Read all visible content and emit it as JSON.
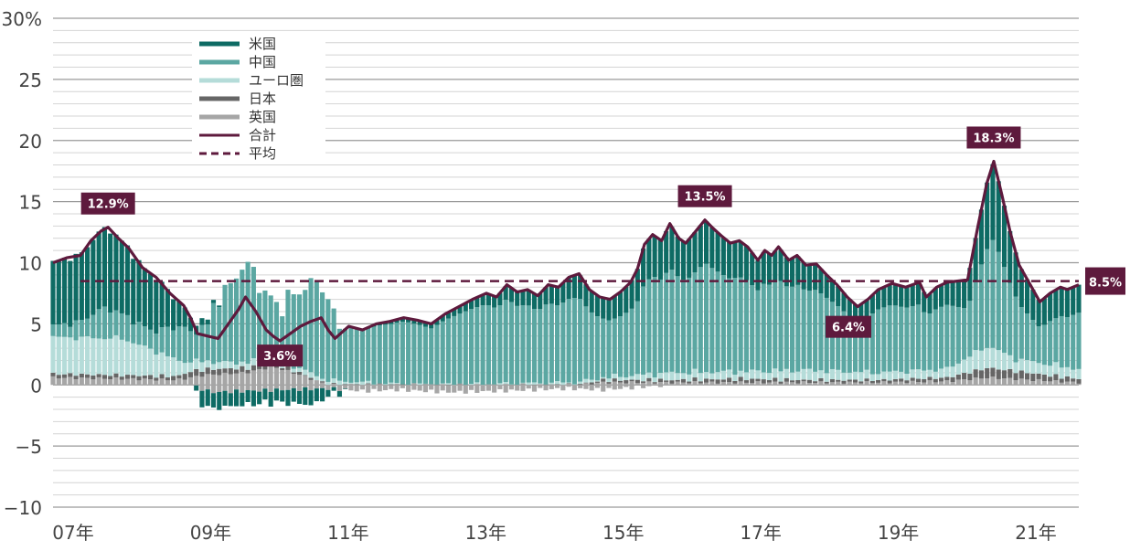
{
  "chart_data": {
    "type": "bar",
    "stacked": true,
    "ylim": [
      -10,
      30
    ],
    "yticks": [
      {
        "value": 30,
        "label": "30%"
      },
      {
        "value": 25,
        "label": "25"
      },
      {
        "value": 20,
        "label": "20"
      },
      {
        "value": 15,
        "label": "15"
      },
      {
        "value": 10,
        "label": "10"
      },
      {
        "value": 5,
        "label": "5"
      },
      {
        "value": 0,
        "label": "0"
      },
      {
        "value": -5,
        "label": "−5"
      },
      {
        "value": -10,
        "label": "−10"
      }
    ],
    "minor_grid_step": 1,
    "xrange": [
      2007.0,
      2021.917
    ],
    "xticks": [
      {
        "value": 2007.0,
        "label": "07年"
      },
      {
        "value": 2009.0,
        "label": "09年"
      },
      {
        "value": 2011.0,
        "label": "11年"
      },
      {
        "value": 2013.0,
        "label": "13年"
      },
      {
        "value": 2015.0,
        "label": "15年"
      },
      {
        "value": 2017.0,
        "label": "17年"
      },
      {
        "value": 2019.0,
        "label": "19年"
      },
      {
        "value": 2021.0,
        "label": "21年"
      }
    ],
    "legend_position": "top-left",
    "legend": [
      {
        "label": "米国",
        "kind": "bar",
        "color": "#0e6b64"
      },
      {
        "label": "中国",
        "kind": "bar",
        "color": "#5ba7a2"
      },
      {
        "label": "ユーロ圏",
        "kind": "bar",
        "color": "#b5dcd9"
      },
      {
        "label": "日本",
        "kind": "bar",
        "color": "#666666"
      },
      {
        "label": "英国",
        "kind": "bar",
        "color": "#a6a6a6"
      },
      {
        "label": "合計",
        "kind": "line",
        "color": "#5e1a3d"
      },
      {
        "label": "平均",
        "kind": "dashed",
        "color": "#5e1a3d"
      }
    ],
    "total_anchors": [
      [
        2007.0,
        10.0
      ],
      [
        2007.2,
        10.4
      ],
      [
        2007.4,
        10.6
      ],
      [
        2007.55,
        11.8
      ],
      [
        2007.7,
        12.6
      ],
      [
        2007.8,
        12.9
      ],
      [
        2007.95,
        12.0
      ],
      [
        2008.1,
        11.2
      ],
      [
        2008.3,
        9.6
      ],
      [
        2008.5,
        8.8
      ],
      [
        2008.7,
        7.5
      ],
      [
        2008.9,
        6.5
      ],
      [
        2009.0,
        5.5
      ],
      [
        2009.1,
        4.2
      ],
      [
        2009.25,
        4.0
      ],
      [
        2009.4,
        3.8
      ],
      [
        2009.55,
        5.0
      ],
      [
        2009.7,
        6.2
      ],
      [
        2009.8,
        7.2
      ],
      [
        2009.95,
        6.0
      ],
      [
        2010.1,
        4.5
      ],
      [
        2010.2,
        4.0
      ],
      [
        2010.3,
        3.6
      ],
      [
        2010.45,
        4.2
      ],
      [
        2010.6,
        4.8
      ],
      [
        2010.75,
        5.2
      ],
      [
        2010.9,
        5.5
      ],
      [
        2011.0,
        4.5
      ],
      [
        2011.1,
        3.8
      ],
      [
        2011.3,
        4.8
      ],
      [
        2011.5,
        4.5
      ],
      [
        2011.7,
        5.0
      ],
      [
        2011.9,
        5.2
      ],
      [
        2012.1,
        5.5
      ],
      [
        2012.3,
        5.3
      ],
      [
        2012.5,
        5.0
      ],
      [
        2012.7,
        5.8
      ],
      [
        2012.9,
        6.4
      ],
      [
        2013.1,
        7.0
      ],
      [
        2013.3,
        7.5
      ],
      [
        2013.45,
        7.2
      ],
      [
        2013.6,
        8.2
      ],
      [
        2013.75,
        7.6
      ],
      [
        2013.9,
        7.8
      ],
      [
        2014.05,
        7.3
      ],
      [
        2014.2,
        8.2
      ],
      [
        2014.35,
        8.0
      ],
      [
        2014.5,
        8.8
      ],
      [
        2014.65,
        9.1
      ],
      [
        2014.8,
        7.8
      ],
      [
        2014.95,
        7.2
      ],
      [
        2015.1,
        7.0
      ],
      [
        2015.25,
        7.6
      ],
      [
        2015.4,
        8.4
      ],
      [
        2015.5,
        9.5
      ],
      [
        2015.6,
        11.5
      ],
      [
        2015.72,
        12.3
      ],
      [
        2015.85,
        11.8
      ],
      [
        2015.97,
        13.2
      ],
      [
        2016.1,
        12.0
      ],
      [
        2016.2,
        11.6
      ],
      [
        2016.35,
        12.6
      ],
      [
        2016.48,
        13.5
      ],
      [
        2016.6,
        12.8
      ],
      [
        2016.72,
        12.2
      ],
      [
        2016.85,
        11.6
      ],
      [
        2016.98,
        11.8
      ],
      [
        2017.1,
        11.3
      ],
      [
        2017.25,
        10.2
      ],
      [
        2017.35,
        11.0
      ],
      [
        2017.45,
        10.6
      ],
      [
        2017.55,
        11.3
      ],
      [
        2017.7,
        10.2
      ],
      [
        2017.82,
        10.6
      ],
      [
        2017.95,
        9.8
      ],
      [
        2018.1,
        9.9
      ],
      [
        2018.25,
        9.0
      ],
      [
        2018.4,
        8.2
      ],
      [
        2018.55,
        7.2
      ],
      [
        2018.7,
        6.4
      ],
      [
        2018.85,
        7.0
      ],
      [
        2019.0,
        7.8
      ],
      [
        2019.2,
        8.3
      ],
      [
        2019.4,
        8.0
      ],
      [
        2019.6,
        8.4
      ],
      [
        2019.7,
        7.2
      ],
      [
        2019.85,
        8.0
      ],
      [
        2020.0,
        8.4
      ],
      [
        2020.15,
        8.5
      ],
      [
        2020.3,
        8.6
      ],
      [
        2020.45,
        13.0
      ],
      [
        2020.58,
        16.5
      ],
      [
        2020.68,
        18.3
      ],
      [
        2020.8,
        15.5
      ],
      [
        2020.92,
        12.5
      ],
      [
        2021.05,
        9.8
      ],
      [
        2021.2,
        8.3
      ],
      [
        2021.35,
        6.8
      ],
      [
        2021.5,
        7.5
      ],
      [
        2021.65,
        8.0
      ],
      [
        2021.75,
        7.8
      ],
      [
        2021.917,
        8.2
      ]
    ],
    "average": {
      "value": 8.5,
      "label": "8.5%"
    },
    "annotations": [
      {
        "label": "12.9%",
        "x": 2007.8,
        "y": 12.9
      },
      {
        "label": "3.6%",
        "x": 2010.3,
        "y": 3.6
      },
      {
        "label": "13.5%",
        "x": 2016.48,
        "y": 13.5
      },
      {
        "label": "6.4%",
        "x": 2018.7,
        "y": 6.4
      },
      {
        "label": "18.3%",
        "x": 2020.68,
        "y": 18.3
      }
    ],
    "colors": {
      "us": "#0e6b64",
      "china": "#5ba7a2",
      "euro": "#b5dcd9",
      "japan": "#666666",
      "uk": "#a6a6a6",
      "total": "#5e1a3d",
      "grid": "#9a9a9a",
      "grid_minor": "#d4d4d4"
    }
  }
}
